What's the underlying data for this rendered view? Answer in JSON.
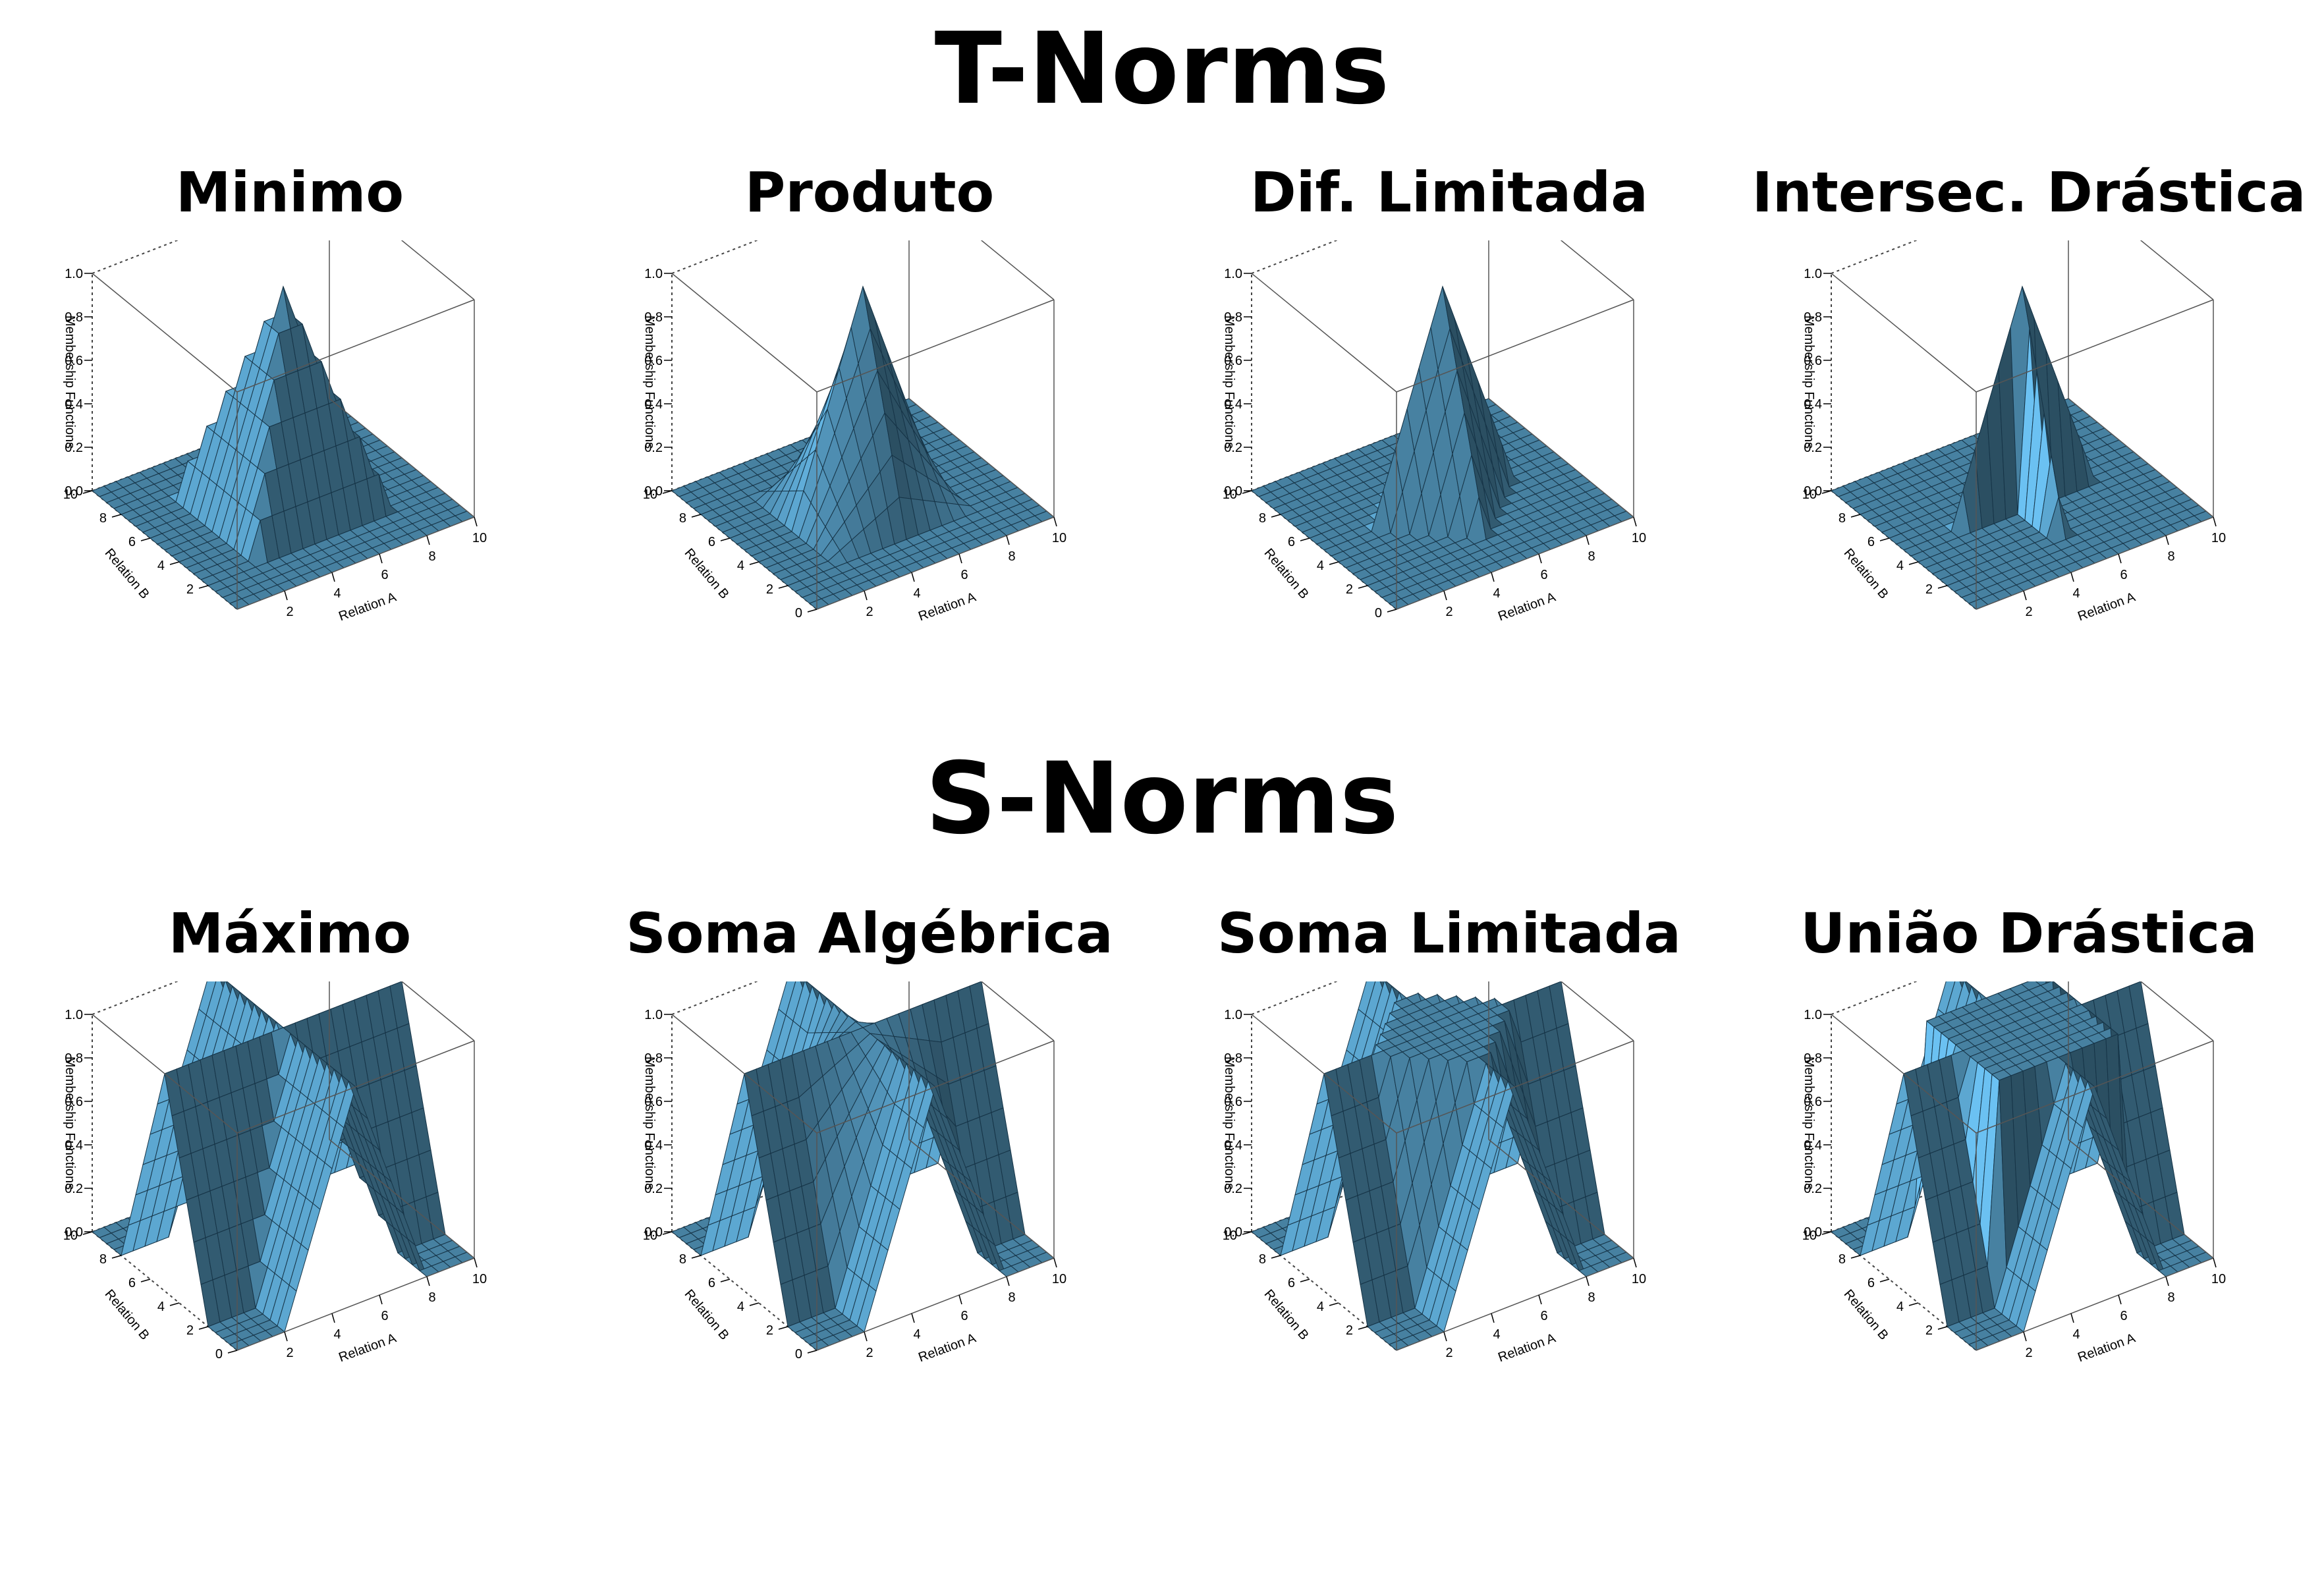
{
  "sections": [
    {
      "title": "T-Norms"
    },
    {
      "title": "S-Norms"
    }
  ],
  "colors": {
    "surface": "#4f8fb3",
    "surface_light": "#7db6d6",
    "surface_dark": "#163447",
    "background": "#ffffff"
  },
  "chart_data": [
    {
      "type": "surface3d",
      "section": "T-Norms",
      "title": "Minimo",
      "operator": "min",
      "xlabel": "Relation A",
      "ylabel": "Relation B",
      "zlabel": "Membership Functions",
      "xlim": [
        0,
        10
      ],
      "ylim": [
        0,
        10
      ],
      "zlim": [
        0,
        1
      ],
      "x_ticks": [
        "2",
        "4",
        "6",
        "8",
        "10"
      ],
      "y_ticks": [
        "2",
        "4",
        "6",
        "8",
        "10"
      ],
      "z_ticks": [
        "0.0",
        "0.2",
        "0.4",
        "0.6",
        "0.8",
        "1.0"
      ]
    },
    {
      "type": "surface3d",
      "section": "T-Norms",
      "title": "Produto",
      "operator": "product",
      "xlabel": "Relation A",
      "ylabel": "Relation B",
      "zlabel": "Membership Functions",
      "xlim": [
        0,
        10
      ],
      "ylim": [
        0,
        10
      ],
      "zlim": [
        0,
        1
      ],
      "x_ticks": [
        "2",
        "4",
        "6",
        "8",
        "10"
      ],
      "y_ticks": [
        "0",
        "2",
        "4",
        "6",
        "8",
        "10"
      ],
      "z_ticks": [
        "0.0",
        "0.2",
        "0.4",
        "0.6",
        "0.8",
        "1.0"
      ]
    },
    {
      "type": "surface3d",
      "section": "T-Norms",
      "title": "Dif. Limitada",
      "operator": "bounded_difference",
      "xlabel": "Relation A",
      "ylabel": "Relation B",
      "zlabel": "Membership Functions",
      "xlim": [
        0,
        10
      ],
      "ylim": [
        0,
        10
      ],
      "zlim": [
        0,
        1
      ],
      "x_ticks": [
        "2",
        "4",
        "6",
        "8",
        "10"
      ],
      "y_ticks": [
        "0",
        "2",
        "4",
        "6",
        "8",
        "10"
      ],
      "z_ticks": [
        "0.0",
        "0.2",
        "0.4",
        "0.6",
        "0.8",
        "1.0"
      ]
    },
    {
      "type": "surface3d",
      "section": "T-Norms",
      "title": "Intersec. Drástica",
      "operator": "drastic_intersection",
      "xlabel": "Relation A",
      "ylabel": "Relation B",
      "zlabel": "Membership Functions",
      "xlim": [
        0,
        10
      ],
      "ylim": [
        0,
        10
      ],
      "zlim": [
        0,
        1
      ],
      "x_ticks": [
        "2",
        "4",
        "6",
        "8",
        "10"
      ],
      "y_ticks": [
        "2",
        "4",
        "6",
        "8",
        "10"
      ],
      "z_ticks": [
        "0.0",
        "0.2",
        "0.4",
        "0.6",
        "0.8",
        "1.0"
      ]
    },
    {
      "type": "surface3d",
      "section": "S-Norms",
      "title": "Máximo",
      "operator": "max",
      "xlabel": "Relation A",
      "ylabel": "Relation B",
      "zlabel": "Membership Functions",
      "xlim": [
        0,
        10
      ],
      "ylim": [
        0,
        10
      ],
      "zlim": [
        0,
        1
      ],
      "x_ticks": [
        "2",
        "4",
        "6",
        "8",
        "10"
      ],
      "y_ticks": [
        "0",
        "2",
        "4",
        "6",
        "8",
        "10"
      ],
      "z_ticks": [
        "0.0",
        "0.2",
        "0.4",
        "0.6",
        "0.8",
        "1.0"
      ]
    },
    {
      "type": "surface3d",
      "section": "S-Norms",
      "title": "Soma Algébrica",
      "operator": "algebraic_sum",
      "xlabel": "Relation A",
      "ylabel": "Relation B",
      "zlabel": "Membership Functions",
      "xlim": [
        0,
        10
      ],
      "ylim": [
        0,
        10
      ],
      "zlim": [
        0,
        1
      ],
      "x_ticks": [
        "2",
        "4",
        "6",
        "8",
        "10"
      ],
      "y_ticks": [
        "0",
        "2",
        "4",
        "6",
        "8",
        "10"
      ],
      "z_ticks": [
        "0.0",
        "0.2",
        "0.4",
        "0.6",
        "0.8",
        "1.0"
      ]
    },
    {
      "type": "surface3d",
      "section": "S-Norms",
      "title": "Soma Limitada",
      "operator": "bounded_sum",
      "xlabel": "Relation A",
      "ylabel": "Relation B",
      "zlabel": "Membership Functions",
      "xlim": [
        0,
        10
      ],
      "ylim": [
        0,
        10
      ],
      "zlim": [
        0,
        1
      ],
      "x_ticks": [
        "2",
        "4",
        "6",
        "8",
        "10"
      ],
      "y_ticks": [
        "2",
        "4",
        "6",
        "8",
        "10"
      ],
      "z_ticks": [
        "0.0",
        "0.2",
        "0.4",
        "0.6",
        "0.8",
        "1.0"
      ]
    },
    {
      "type": "surface3d",
      "section": "S-Norms",
      "title": "União Drástica",
      "operator": "drastic_union",
      "xlabel": "Relation A",
      "ylabel": "Relation B",
      "zlabel": "Membership Functions",
      "xlim": [
        0,
        10
      ],
      "ylim": [
        0,
        10
      ],
      "zlim": [
        0,
        1
      ],
      "x_ticks": [
        "2",
        "4",
        "6",
        "8",
        "10"
      ],
      "y_ticks": [
        "2",
        "4",
        "6",
        "8",
        "10"
      ],
      "z_ticks": [
        "0.0",
        "0.2",
        "0.4",
        "0.6",
        "0.8",
        "1.0"
      ]
    }
  ]
}
